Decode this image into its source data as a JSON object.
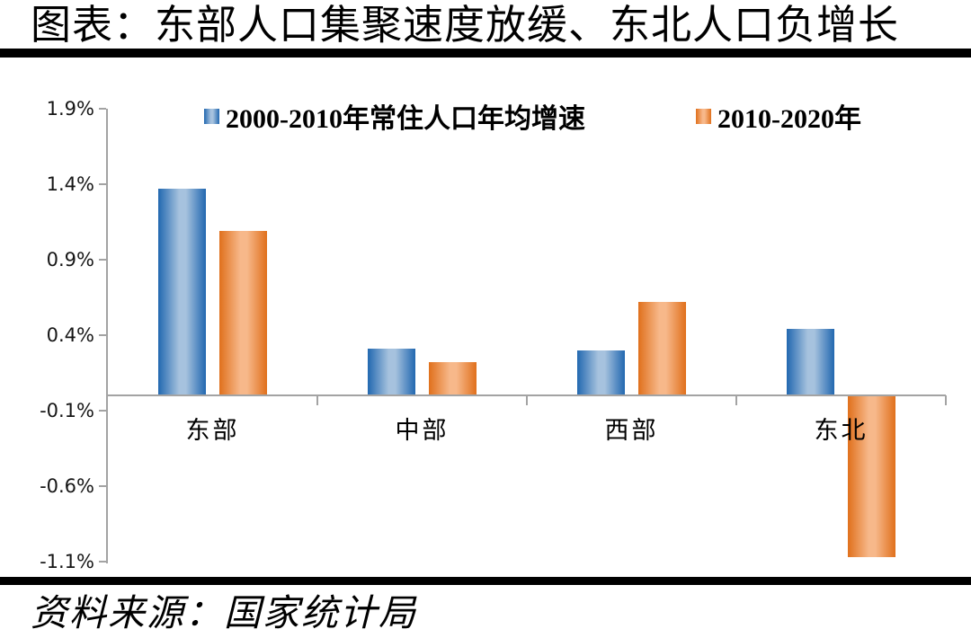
{
  "title": "图表：东部人口集聚速度放缓、东北人口负增长",
  "source": "资料来源：国家统计局",
  "chart_data": {
    "type": "bar",
    "title": "图表：东部人口集聚速度放缓、东北人口负增长",
    "categories": [
      "东部",
      "中部",
      "西部",
      "东北"
    ],
    "series": [
      {
        "name": "2000-2010年常住人口年均增速",
        "values": [
          1.37,
          0.31,
          0.3,
          0.44
        ]
      },
      {
        "name": "2010-2020年",
        "values": [
          1.09,
          0.22,
          0.62,
          -1.07
        ]
      }
    ],
    "unit": "%",
    "ylim": [
      -1.1,
      1.9
    ],
    "yticks": [
      1.9,
      1.4,
      0.9,
      0.4,
      -0.1,
      -0.6,
      -1.1
    ],
    "ytick_labels": [
      "1.9%",
      "1.4%",
      "0.9%",
      "0.4%",
      "-0.1%",
      "-0.6%",
      "-1.1%"
    ],
    "grid": false,
    "legend_position": "top",
    "source_note": "资料来源：国家统计局"
  },
  "colors": {
    "series1_dark": "#2268b0",
    "series1_light": "#a6c2de",
    "series2_dark": "#e0701c",
    "series2_light": "#f7b88a",
    "axis": "#a3a3a3",
    "rule": "#000000",
    "text": "#000000"
  }
}
